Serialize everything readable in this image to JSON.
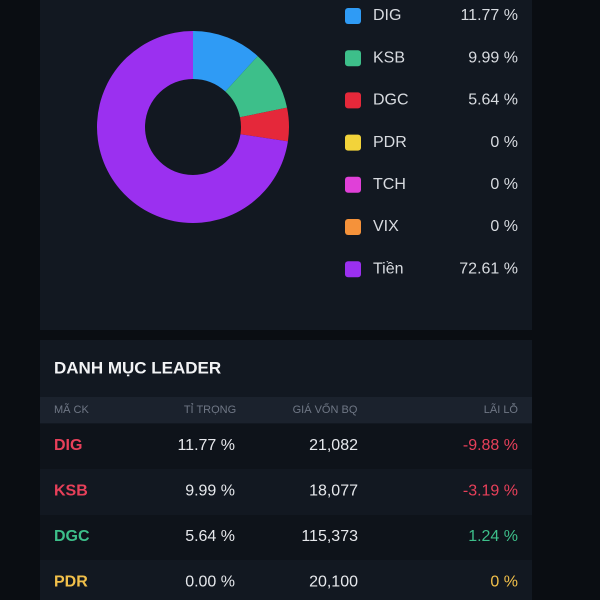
{
  "chart_data": {
    "type": "pie",
    "donut": true,
    "categories": [
      "DIG",
      "KSB",
      "DGC",
      "PDR",
      "TCH",
      "VIX",
      "Tiền"
    ],
    "values": [
      11.77,
      9.99,
      5.64,
      0,
      0,
      0,
      72.61
    ],
    "value_labels": [
      "11.77 %",
      "9.99 %",
      "5.64 %",
      "0 %",
      "0 %",
      "0 %",
      "72.61 %"
    ],
    "colors": [
      "#2f9bf5",
      "#3dbf8a",
      "#e5283a",
      "#f2d33a",
      "#e040d8",
      "#f5923a",
      "#9b30f0"
    ]
  },
  "table": {
    "title": "DANH MỤC LEADER",
    "header": [
      "MÃ CK",
      "TỈ TRỌNG",
      "GIÁ VỐN BQ",
      "LÃI LỖ"
    ],
    "rows": [
      [
        "DIG",
        "11.77 %",
        "21,082",
        "-9.88 %"
      ],
      [
        "KSB",
        "9.99 %",
        "18,077",
        "-3.19 %"
      ],
      [
        "DGC",
        "5.64 %",
        "115,373",
        "1.24 %"
      ],
      [
        "PDR",
        "0.00 %",
        "20,100",
        "0 %"
      ]
    ]
  }
}
